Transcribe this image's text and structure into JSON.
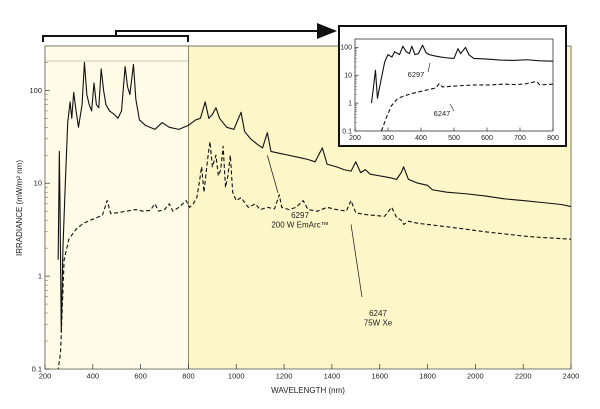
{
  "chart_data": [
    {
      "type": "line",
      "xlabel": "WAVELENGTH (nm)",
      "ylabel": "IRRADIANCE  (mW/m² nm)",
      "xlim": [
        200,
        2400
      ],
      "ylim": [
        0.1,
        300
      ],
      "yscale": "log",
      "x_ticks": [
        200,
        400,
        600,
        800,
        1000,
        1200,
        1400,
        1600,
        1800,
        2000,
        2200,
        2400
      ],
      "y_ticks": [
        {
          "value": 0.1,
          "label": "0.1"
        },
        {
          "value": 1,
          "label": "1"
        },
        {
          "value": 10,
          "label": "10"
        },
        {
          "value": 100,
          "label": "100"
        }
      ],
      "shaded_region": [
        200,
        800
      ],
      "series": [
        {
          "name": "6297 200 W EmArc™",
          "style": "solid",
          "points": [
            [
              255,
              1.5
            ],
            [
              260,
              22
            ],
            [
              263,
              5
            ],
            [
              268,
              0.25
            ],
            [
              275,
              2
            ],
            [
              285,
              10
            ],
            [
              295,
              45
            ],
            [
              305,
              75
            ],
            [
              312,
              50
            ],
            [
              320,
              95
            ],
            [
              330,
              60
            ],
            [
              340,
              40
            ],
            [
              355,
              70
            ],
            [
              365,
              200
            ],
            [
              375,
              90
            ],
            [
              385,
              70
            ],
            [
              395,
              60
            ],
            [
              405,
              120
            ],
            [
              415,
              70
            ],
            [
              425,
              65
            ],
            [
              435,
              170
            ],
            [
              445,
              100
            ],
            [
              455,
              70
            ],
            [
              470,
              60
            ],
            [
              490,
              55
            ],
            [
              505,
              50
            ],
            [
              520,
              60
            ],
            [
              535,
              180
            ],
            [
              545,
              110
            ],
            [
              555,
              90
            ],
            [
              570,
              190
            ],
            [
              580,
              80
            ],
            [
              595,
              48
            ],
            [
              620,
              42
            ],
            [
              660,
              38
            ],
            [
              690,
              45
            ],
            [
              720,
              40
            ],
            [
              760,
              38
            ],
            [
              800,
              42
            ],
            [
              830,
              48
            ],
            [
              850,
              50
            ],
            [
              870,
              75
            ],
            [
              885,
              50
            ],
            [
              900,
              55
            ],
            [
              915,
              65
            ],
            [
              930,
              50
            ],
            [
              960,
              40
            ],
            [
              990,
              38
            ],
            [
              1020,
              58
            ],
            [
              1035,
              36
            ],
            [
              1060,
              30
            ],
            [
              1090,
              26
            ],
            [
              1110,
              24
            ],
            [
              1130,
              35
            ],
            [
              1145,
              22
            ],
            [
              1180,
              21
            ],
            [
              1220,
              20
            ],
            [
              1260,
              19
            ],
            [
              1300,
              18
            ],
            [
              1330,
              17
            ],
            [
              1360,
              24
            ],
            [
              1380,
              16
            ],
            [
              1420,
              15
            ],
            [
              1450,
              14
            ],
            [
              1480,
              13.5
            ],
            [
              1500,
              17
            ],
            [
              1520,
              13
            ],
            [
              1540,
              14
            ],
            [
              1560,
              12.5
            ],
            [
              1600,
              12
            ],
            [
              1640,
              11.5
            ],
            [
              1670,
              11
            ],
            [
              1690,
              13
            ],
            [
              1700,
              15
            ],
            [
              1720,
              11
            ],
            [
              1760,
              10
            ],
            [
              1800,
              9.5
            ],
            [
              1820,
              8.5
            ],
            [
              1880,
              8
            ],
            [
              1960,
              7.7
            ],
            [
              2040,
              7.3
            ],
            [
              2120,
              6.8
            ],
            [
              2200,
              6.5
            ],
            [
              2280,
              6.2
            ],
            [
              2360,
              5.9
            ],
            [
              2400,
              5.6
            ]
          ]
        },
        {
          "name": "6247 75W Xe",
          "style": "dashed",
          "points": [
            [
              250,
              0.08
            ],
            [
              265,
              0.15
            ],
            [
              280,
              1.5
            ],
            [
              300,
              2.5
            ],
            [
              330,
              3.2
            ],
            [
              360,
              3.7
            ],
            [
              390,
              4
            ],
            [
              420,
              4.3
            ],
            [
              440,
              4.5
            ],
            [
              460,
              6.5
            ],
            [
              475,
              4.7
            ],
            [
              500,
              4.8
            ],
            [
              540,
              5
            ],
            [
              580,
              5.2
            ],
            [
              610,
              5
            ],
            [
              640,
              5.1
            ],
            [
              660,
              6
            ],
            [
              675,
              5
            ],
            [
              700,
              5.2
            ],
            [
              720,
              6
            ],
            [
              735,
              5
            ],
            [
              760,
              5.5
            ],
            [
              790,
              6.5
            ],
            [
              805,
              5.5
            ],
            [
              820,
              6
            ],
            [
              835,
              7
            ],
            [
              845,
              10
            ],
            [
              855,
              15
            ],
            [
              865,
              8
            ],
            [
              880,
              18
            ],
            [
              890,
              28
            ],
            [
              900,
              15
            ],
            [
              915,
              20
            ],
            [
              925,
              12
            ],
            [
              935,
              14
            ],
            [
              945,
              25
            ],
            [
              955,
              9
            ],
            [
              965,
              12
            ],
            [
              975,
              20
            ],
            [
              985,
              8
            ],
            [
              1000,
              6.5
            ],
            [
              1020,
              7
            ],
            [
              1050,
              5.5
            ],
            [
              1080,
              6
            ],
            [
              1100,
              5.2
            ],
            [
              1130,
              5.5
            ],
            [
              1160,
              5.3
            ],
            [
              1180,
              7.5
            ],
            [
              1190,
              5.5
            ],
            [
              1220,
              5.2
            ],
            [
              1250,
              5.5
            ],
            [
              1280,
              6.5
            ],
            [
              1300,
              5.2
            ],
            [
              1340,
              5
            ],
            [
              1380,
              5.5
            ],
            [
              1420,
              5.2
            ],
            [
              1460,
              5
            ],
            [
              1480,
              6.5
            ],
            [
              1500,
              4.8
            ],
            [
              1540,
              4.6
            ],
            [
              1580,
              4.5
            ],
            [
              1620,
              4.4
            ],
            [
              1650,
              5.5
            ],
            [
              1670,
              4.3
            ],
            [
              1690,
              4
            ],
            [
              1700,
              3.6
            ],
            [
              1720,
              3.9
            ],
            [
              1760,
              3.7
            ],
            [
              1800,
              3.6
            ],
            [
              1880,
              3.4
            ],
            [
              1960,
              3.2
            ],
            [
              2040,
              3
            ],
            [
              2120,
              2.85
            ],
            [
              2200,
              2.7
            ],
            [
              2280,
              2.6
            ],
            [
              2400,
              2.5
            ]
          ]
        }
      ],
      "annotations": [
        {
          "series": "6297 200 W EmArc™",
          "lines": [
            "6297",
            "200 W EmArc™"
          ],
          "at": [
            1130,
            20
          ]
        },
        {
          "series": "6247 75W Xe",
          "lines": [
            "6247",
            "75W Xe"
          ],
          "at": [
            1480,
            3.6
          ]
        }
      ]
    },
    {
      "type": "line",
      "role": "inset",
      "xlim": [
        200,
        800
      ],
      "ylim": [
        0.1,
        200
      ],
      "yscale": "log",
      "x_ticks": [
        200,
        300,
        400,
        500,
        600,
        700,
        800
      ],
      "y_ticks": [
        {
          "value": 0.1,
          "label": "0.1"
        },
        {
          "value": 1,
          "label": "1"
        },
        {
          "value": 10,
          "label": "10"
        },
        {
          "value": 100,
          "label": "100"
        }
      ],
      "series": [
        {
          "name": "6297",
          "style": "solid",
          "points": [
            [
              250,
              1
            ],
            [
              255,
              3
            ],
            [
              262,
              15
            ],
            [
              268,
              1.5
            ],
            [
              278,
              6
            ],
            [
              290,
              30
            ],
            [
              300,
              55
            ],
            [
              312,
              45
            ],
            [
              320,
              70
            ],
            [
              335,
              55
            ],
            [
              345,
              110
            ],
            [
              355,
              70
            ],
            [
              365,
              60
            ],
            [
              372,
              110
            ],
            [
              382,
              55
            ],
            [
              392,
              60
            ],
            [
              405,
              120
            ],
            [
              415,
              65
            ],
            [
              425,
              55
            ],
            [
              440,
              50
            ],
            [
              460,
              45
            ],
            [
              480,
              42
            ],
            [
              500,
              40
            ],
            [
              512,
              90
            ],
            [
              520,
              60
            ],
            [
              535,
              100
            ],
            [
              545,
              55
            ],
            [
              560,
              40
            ],
            [
              600,
              38
            ],
            [
              640,
              35
            ],
            [
              680,
              34
            ],
            [
              720,
              36
            ],
            [
              760,
              33
            ],
            [
              800,
              32
            ]
          ]
        },
        {
          "name": "6247",
          "style": "dashed",
          "points": [
            [
              280,
              0.1
            ],
            [
              295,
              0.3
            ],
            [
              310,
              0.8
            ],
            [
              330,
              1.5
            ],
            [
              360,
              2
            ],
            [
              390,
              2.5
            ],
            [
              420,
              3
            ],
            [
              445,
              3.5
            ],
            [
              455,
              5
            ],
            [
              465,
              3.8
            ],
            [
              490,
              4
            ],
            [
              530,
              4.3
            ],
            [
              570,
              4.5
            ],
            [
              610,
              4.5
            ],
            [
              650,
              4.8
            ],
            [
              690,
              4.6
            ],
            [
              720,
              5
            ],
            [
              750,
              6
            ],
            [
              760,
              4.5
            ],
            [
              800,
              4.8
            ]
          ]
        }
      ],
      "annotations": [
        {
          "series": "6297",
          "text": "6297"
        },
        {
          "series": "6247",
          "text": "6247"
        }
      ]
    }
  ]
}
